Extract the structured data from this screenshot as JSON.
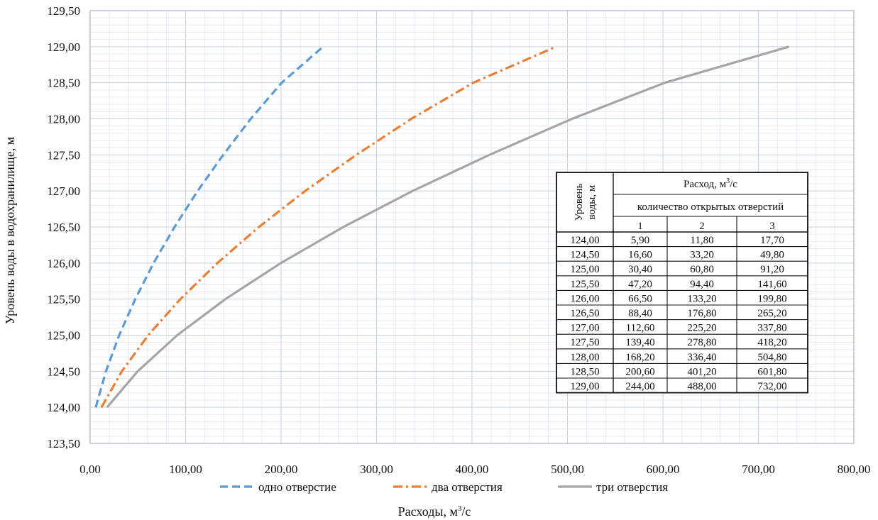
{
  "chart_data": {
    "type": "line",
    "xlabel": "Расходы, м",
    "xlabel_sup": "3",
    "xlabel_tail": "/с",
    "ylabel": "Уровень воды в водохранилище, м",
    "xlim": [
      0,
      800
    ],
    "ylim": [
      123.5,
      129.5
    ],
    "x_ticks": [
      "0,00",
      "100,00",
      "200,00",
      "300,00",
      "400,00",
      "500,00",
      "600,00",
      "700,00",
      "800,00"
    ],
    "y_ticks": [
      "123,50",
      "124,00",
      "124,50",
      "125,00",
      "125,50",
      "126,00",
      "126,50",
      "127,00",
      "127,50",
      "128,00",
      "128,50",
      "129,00",
      "129,50"
    ],
    "grid": true,
    "legend_position": "bottom",
    "series": [
      {
        "name": "одно отверстие",
        "color": "#5b9bd5",
        "style": "dashed",
        "x": [
          5.9,
          16.6,
          30.4,
          47.2,
          66.5,
          88.4,
          112.6,
          139.4,
          168.2,
          200.6,
          244.0
        ],
        "y": [
          124.0,
          124.5,
          125.0,
          125.5,
          126.0,
          126.5,
          127.0,
          127.5,
          128.0,
          128.5,
          129.0
        ]
      },
      {
        "name": "два отверстия",
        "color": "#ed7d31",
        "style": "dashdot",
        "x": [
          11.8,
          33.2,
          60.8,
          94.4,
          133.2,
          176.8,
          225.2,
          278.8,
          336.4,
          401.2,
          488.0
        ],
        "y": [
          124.0,
          124.5,
          125.0,
          125.5,
          126.0,
          126.5,
          127.0,
          127.5,
          128.0,
          128.5,
          129.0
        ]
      },
      {
        "name": "три отверстия",
        "color": "#a5a5a5",
        "style": "solid",
        "x": [
          17.7,
          49.8,
          91.2,
          141.6,
          199.8,
          265.2,
          337.8,
          418.2,
          504.8,
          601.8,
          732.0
        ],
        "y": [
          124.0,
          124.5,
          125.0,
          125.5,
          126.0,
          126.5,
          127.0,
          127.5,
          128.0,
          128.5,
          129.0
        ]
      }
    ],
    "table": {
      "level_header": [
        "Уровень",
        "воды, м"
      ],
      "flow_header": "Расход, м",
      "flow_header_sup": "3",
      "flow_header_tail": "/с",
      "openings_header": "количество открытых отверстий",
      "opening_cols": [
        "1",
        "2",
        "3"
      ],
      "rows": [
        [
          "124,00",
          "5,90",
          "11,80",
          "17,70"
        ],
        [
          "124,50",
          "16,60",
          "33,20",
          "49,80"
        ],
        [
          "125,00",
          "30,40",
          "60,80",
          "91,20"
        ],
        [
          "125,50",
          "47,20",
          "94,40",
          "141,60"
        ],
        [
          "126,00",
          "66,50",
          "133,20",
          "199,80"
        ],
        [
          "126,50",
          "88,40",
          "176,80",
          "265,20"
        ],
        [
          "127,00",
          "112,60",
          "225,20",
          "337,80"
        ],
        [
          "127,50",
          "139,40",
          "278,80",
          "418,20"
        ],
        [
          "128,00",
          "168,20",
          "336,40",
          "504,80"
        ],
        [
          "128,50",
          "200,60",
          "401,20",
          "601,80"
        ],
        [
          "129,00",
          "244,00",
          "488,00",
          "732,00"
        ]
      ]
    }
  }
}
